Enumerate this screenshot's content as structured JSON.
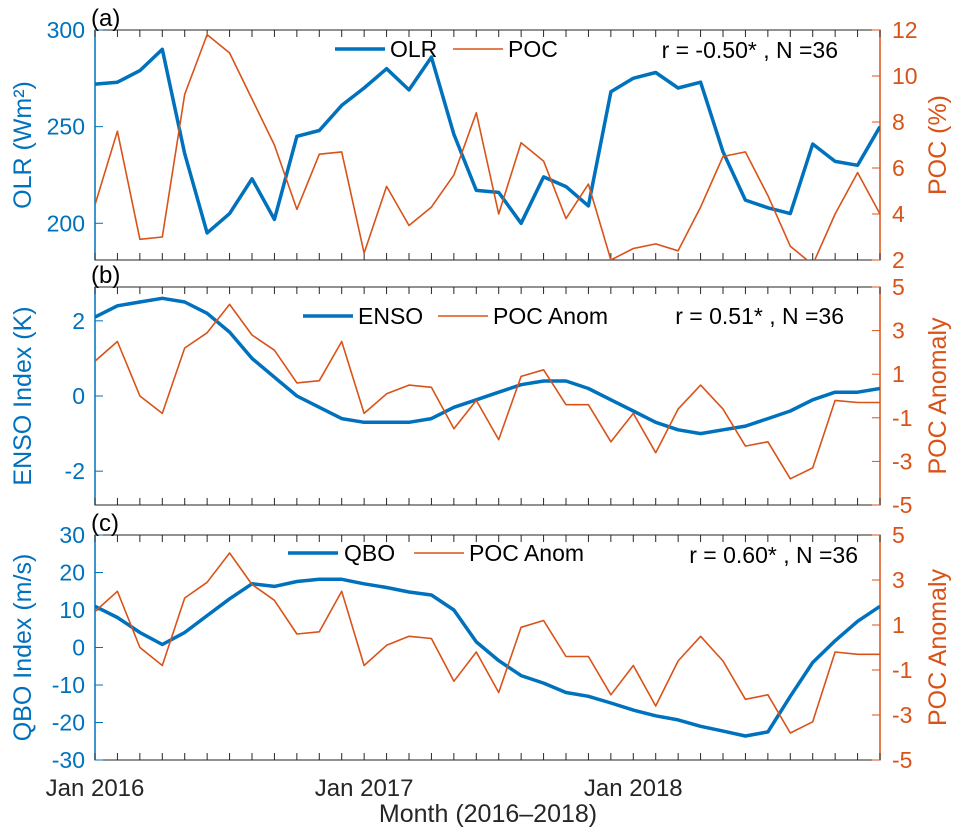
{
  "figure": {
    "xlabel": "Month (2016–2018)",
    "x_tick_labels": [
      "Jan 2016",
      "Jan 2017",
      "Jan 2018"
    ],
    "x_tick_months": [
      1,
      13,
      25
    ],
    "x_range": [
      1,
      36
    ],
    "left_color": "#0072BD",
    "right_color": "#D95319"
  },
  "chart_data": [
    {
      "type": "line",
      "panel_label": "(a)",
      "ylabel_left": "OLR (Wm²)",
      "ylabel_right": "POC (%)",
      "ylim_left": [
        181,
        300
      ],
      "ylim_right": [
        2,
        12
      ],
      "yticks_left": [
        200,
        250,
        300
      ],
      "yticks_right": [
        2,
        4,
        6,
        8,
        10,
        12
      ],
      "annotation": "r = -0.50* , N =36",
      "legend": "top-center",
      "x": [
        1,
        2,
        3,
        4,
        5,
        6,
        7,
        8,
        9,
        10,
        11,
        12,
        13,
        14,
        15,
        16,
        17,
        18,
        19,
        20,
        21,
        22,
        23,
        24,
        25,
        26,
        27,
        28,
        29,
        30,
        31,
        32,
        33,
        34,
        35,
        36
      ],
      "series": [
        {
          "name": "OLR",
          "axis": "left",
          "width": "thick",
          "values": [
            272,
            273,
            279,
            290,
            236,
            195,
            205,
            223,
            202,
            245,
            248,
            261,
            270,
            280,
            269,
            286,
            246,
            217,
            216,
            200,
            224,
            219,
            209,
            268,
            275,
            278,
            270,
            273,
            237,
            212,
            208,
            205,
            241,
            232,
            230,
            250
          ]
        },
        {
          "name": "POC",
          "axis": "right",
          "width": "thin",
          "values": [
            4.4,
            7.6,
            2.9,
            3.0,
            9.2,
            11.8,
            11.0,
            9.0,
            7.0,
            4.2,
            6.6,
            6.7,
            2.3,
            5.2,
            3.5,
            4.3,
            5.7,
            8.4,
            4.0,
            7.1,
            6.3,
            3.8,
            5.3,
            2.0,
            2.5,
            2.7,
            2.4,
            4.3,
            6.5,
            6.7,
            4.8,
            2.6,
            1.8,
            4.0,
            5.8,
            4.0
          ]
        }
      ]
    },
    {
      "type": "line",
      "panel_label": "(b)",
      "ylabel_left": "ENSO Index (K)",
      "ylabel_right": "POC Anomaly",
      "ylim_left": [
        -2.9,
        2.9
      ],
      "ylim_right": [
        -5,
        5
      ],
      "yticks_left": [
        -2,
        0,
        2
      ],
      "yticks_right": [
        -5,
        -3,
        -1,
        1,
        3,
        5
      ],
      "annotation": "r = 0.51* , N =36",
      "legend": "top-center",
      "x": [
        1,
        2,
        3,
        4,
        5,
        6,
        7,
        8,
        9,
        10,
        11,
        12,
        13,
        14,
        15,
        16,
        17,
        18,
        19,
        20,
        21,
        22,
        23,
        24,
        25,
        26,
        27,
        28,
        29,
        30,
        31,
        32,
        33,
        34,
        35,
        36
      ],
      "series": [
        {
          "name": "ENSO",
          "axis": "left",
          "width": "thick",
          "values": [
            2.1,
            2.4,
            2.5,
            2.6,
            2.5,
            2.2,
            1.7,
            1.0,
            0.5,
            0.0,
            -0.3,
            -0.6,
            -0.7,
            -0.7,
            -0.7,
            -0.6,
            -0.3,
            -0.1,
            0.1,
            0.3,
            0.4,
            0.4,
            0.2,
            -0.1,
            -0.4,
            -0.7,
            -0.9,
            -1.0,
            -0.9,
            -0.8,
            -0.6,
            -0.4,
            -0.1,
            0.1,
            0.1,
            0.2
          ]
        },
        {
          "name": "POC Anom",
          "axis": "right",
          "width": "thin",
          "values": [
            1.6,
            2.5,
            0.0,
            -0.8,
            2.2,
            2.9,
            4.2,
            2.8,
            2.1,
            0.6,
            0.7,
            2.5,
            -0.8,
            0.1,
            0.5,
            0.4,
            -1.5,
            -0.2,
            -2.0,
            0.9,
            1.2,
            -0.4,
            -0.4,
            -2.1,
            -0.8,
            -2.6,
            -0.6,
            0.5,
            -0.6,
            -2.3,
            -2.1,
            -3.8,
            -3.3,
            -0.2,
            -0.3,
            -0.3
          ]
        }
      ]
    },
    {
      "type": "line",
      "panel_label": "(c)",
      "ylabel_left": "QBO Index (m/s)",
      "ylabel_right": "POC Anomaly",
      "ylim_left": [
        -30,
        30
      ],
      "ylim_right": [
        -5,
        5
      ],
      "yticks_left": [
        -30,
        -20,
        -10,
        0,
        10,
        20,
        30
      ],
      "yticks_right": [
        -5,
        -3,
        -1,
        1,
        3,
        5
      ],
      "annotation": "r = 0.60* , N =36",
      "legend": "top-center",
      "x": [
        1,
        2,
        3,
        4,
        5,
        6,
        7,
        8,
        9,
        10,
        11,
        12,
        13,
        14,
        15,
        16,
        17,
        18,
        19,
        20,
        21,
        22,
        23,
        24,
        25,
        26,
        27,
        28,
        29,
        30,
        31,
        32,
        33,
        34,
        35,
        36
      ],
      "series": [
        {
          "name": "QBO",
          "axis": "left",
          "width": "thick",
          "values": [
            11.0,
            8.0,
            4.0,
            0.8,
            4.0,
            8.5,
            13.0,
            17.0,
            16.3,
            17.6,
            18.2,
            18.2,
            17.0,
            16.0,
            14.8,
            14.0,
            10.0,
            1.5,
            -3.5,
            -7.5,
            -9.5,
            -12.0,
            -13.0,
            -14.8,
            -16.7,
            -18.2,
            -19.3,
            -21.0,
            -22.3,
            -23.6,
            -22.5,
            -13.0,
            -4.0,
            1.8,
            7.0,
            11.0
          ]
        },
        {
          "name": "POC Anom",
          "axis": "right",
          "width": "thin",
          "values": [
            1.6,
            2.5,
            0.0,
            -0.8,
            2.2,
            2.9,
            4.2,
            2.8,
            2.1,
            0.6,
            0.7,
            2.5,
            -0.8,
            0.1,
            0.5,
            0.4,
            -1.5,
            -0.2,
            -2.0,
            0.9,
            1.2,
            -0.4,
            -0.4,
            -2.1,
            -0.8,
            -2.6,
            -0.6,
            0.5,
            -0.6,
            -2.3,
            -2.1,
            -3.8,
            -3.3,
            -0.2,
            -0.3,
            -0.3
          ]
        }
      ]
    }
  ]
}
